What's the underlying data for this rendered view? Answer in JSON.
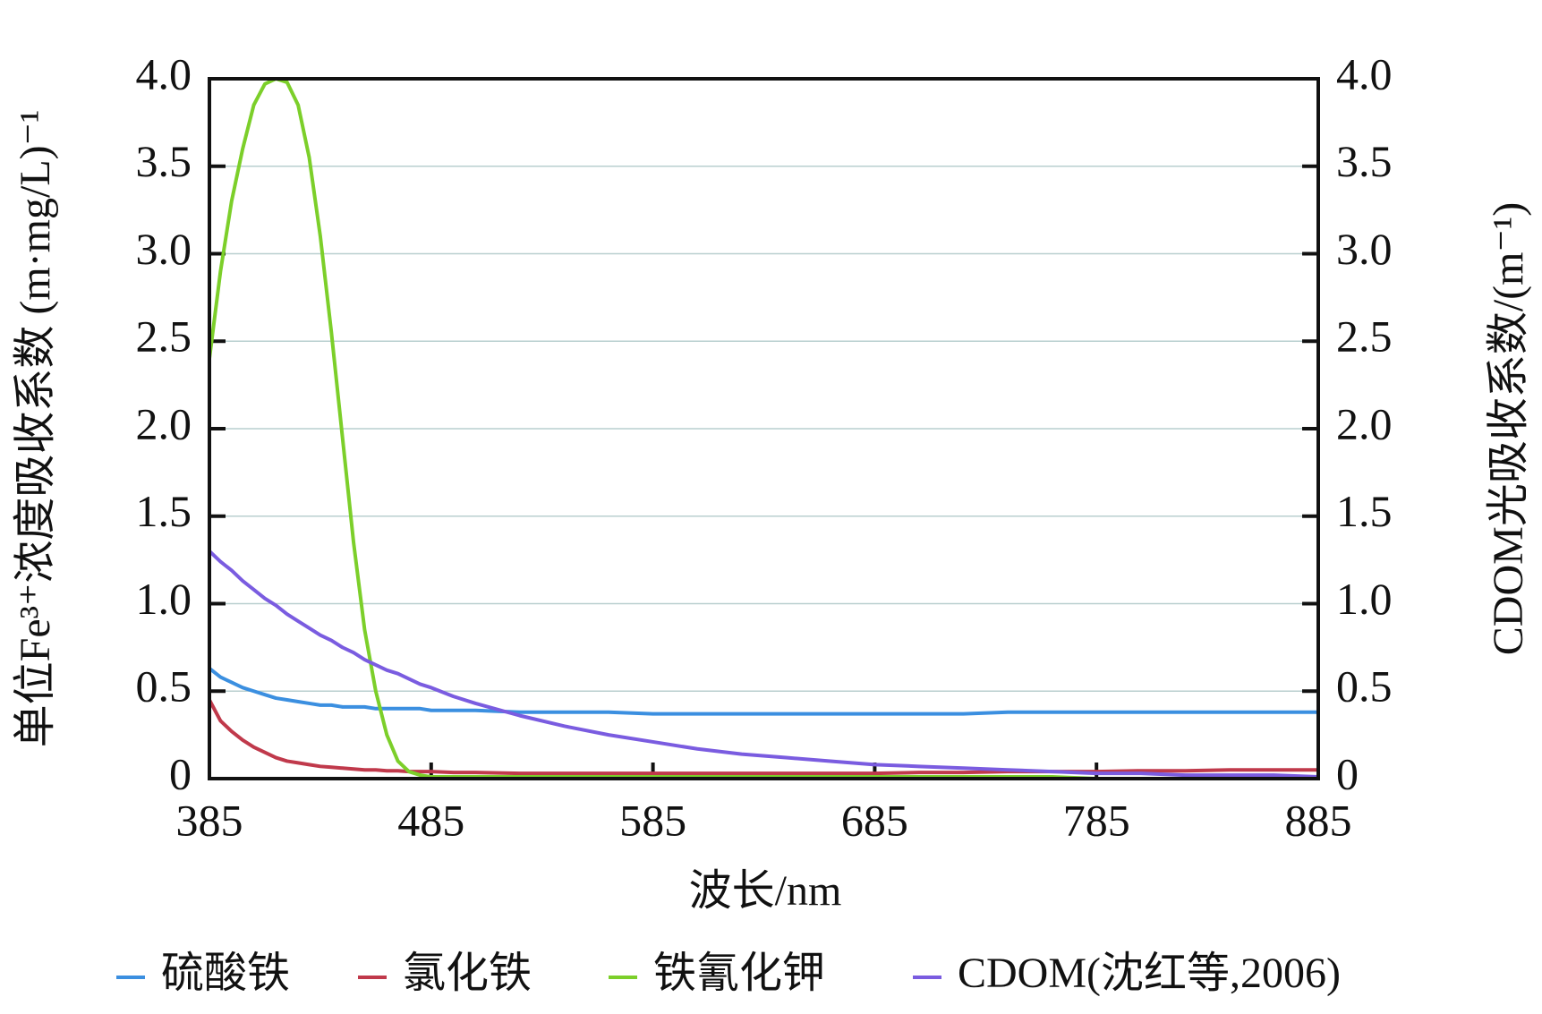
{
  "chart_data": {
    "type": "line",
    "x_label": "波长/nm",
    "y_label": "单位Fe³⁺浓度吸收系数 (m·mg/L)⁻¹",
    "y2_label": "CDOM光吸收系数/(m⁻¹)",
    "x": [
      385,
      390,
      395,
      400,
      405,
      410,
      415,
      420,
      425,
      430,
      435,
      440,
      445,
      450,
      455,
      460,
      465,
      470,
      475,
      480,
      485,
      495,
      505,
      525,
      545,
      565,
      585,
      605,
      625,
      645,
      665,
      685,
      705,
      725,
      745,
      765,
      785,
      805,
      825,
      845,
      865,
      885
    ],
    "series": [
      {
        "name": "硫酸铁",
        "color": "#3b8fe0",
        "values": [
          0.63,
          0.58,
          0.55,
          0.52,
          0.5,
          0.48,
          0.46,
          0.45,
          0.44,
          0.43,
          0.42,
          0.42,
          0.41,
          0.41,
          0.41,
          0.4,
          0.4,
          0.4,
          0.4,
          0.4,
          0.39,
          0.39,
          0.39,
          0.38,
          0.38,
          0.38,
          0.37,
          0.37,
          0.37,
          0.37,
          0.37,
          0.37,
          0.37,
          0.37,
          0.38,
          0.38,
          0.38,
          0.38,
          0.38,
          0.38,
          0.38,
          0.38
        ]
      },
      {
        "name": "氯化铁",
        "color": "#c0394b",
        "values": [
          0.45,
          0.33,
          0.27,
          0.22,
          0.18,
          0.15,
          0.12,
          0.1,
          0.09,
          0.08,
          0.07,
          0.065,
          0.06,
          0.055,
          0.05,
          0.05,
          0.045,
          0.045,
          0.04,
          0.04,
          0.04,
          0.035,
          0.035,
          0.03,
          0.03,
          0.03,
          0.03,
          0.03,
          0.03,
          0.03,
          0.03,
          0.03,
          0.035,
          0.035,
          0.04,
          0.04,
          0.04,
          0.045,
          0.045,
          0.05,
          0.05,
          0.05
        ]
      },
      {
        "name": "铁氰化钾",
        "color": "#7ccf2a",
        "values": [
          2.4,
          2.9,
          3.3,
          3.6,
          3.85,
          3.97,
          4.0,
          3.98,
          3.85,
          3.55,
          3.1,
          2.55,
          1.95,
          1.35,
          0.85,
          0.5,
          0.25,
          0.1,
          0.04,
          0.02,
          0.01,
          0.01,
          0.01,
          0.01,
          0.01,
          0.01,
          0.01,
          0.01,
          0.01,
          0.01,
          0.01,
          0.01,
          0.01,
          0.01,
          0.01,
          0.01,
          0,
          0,
          0,
          0,
          0,
          0
        ]
      },
      {
        "name": "CDOM(沈红等,2006)",
        "color": "#7a5ce0",
        "axis": "y2",
        "values": [
          1.3,
          1.24,
          1.19,
          1.13,
          1.08,
          1.03,
          0.99,
          0.94,
          0.9,
          0.86,
          0.82,
          0.79,
          0.75,
          0.72,
          0.68,
          0.65,
          0.62,
          0.6,
          0.57,
          0.54,
          0.52,
          0.47,
          0.43,
          0.36,
          0.3,
          0.25,
          0.21,
          0.17,
          0.14,
          0.12,
          0.1,
          0.08,
          0.07,
          0.06,
          0.05,
          0.04,
          0.03,
          0.03,
          0.02,
          0.02,
          0.02,
          0.01
        ]
      }
    ],
    "xlim": [
      385,
      885
    ],
    "xticks": [
      385,
      485,
      585,
      685,
      785,
      885
    ],
    "ylim": [
      0,
      4
    ],
    "yticks": [
      0,
      0.5,
      {
        "value": 1,
        "label": "1.0"
      },
      1.5,
      {
        "value": 2,
        "label": "2.0"
      },
      2.5,
      {
        "value": 3,
        "label": "3.0"
      },
      3.5,
      {
        "value": 4,
        "label": "4.0"
      }
    ],
    "y2lim": [
      0,
      4
    ],
    "y2ticks": [
      0,
      0.5,
      {
        "value": 1,
        "label": "1.0"
      },
      1.5,
      {
        "value": 2,
        "label": "2.0"
      },
      2.5,
      {
        "value": 3,
        "label": "3.0"
      },
      3.5,
      {
        "value": 4,
        "label": "4.0"
      }
    ],
    "grid": true,
    "legend": "bottom"
  }
}
